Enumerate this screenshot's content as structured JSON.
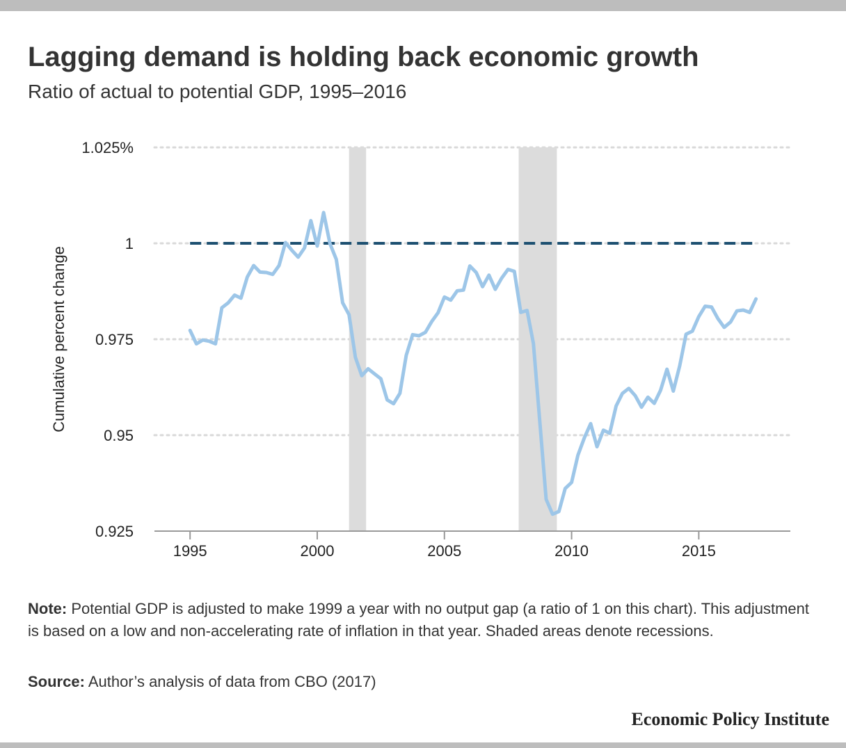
{
  "title": "Lagging demand is holding back economic growth",
  "subtitle": "Ratio of actual to potential GDP, 1995–2016",
  "note": {
    "label": "Note:",
    "text": "Potential GDP is adjusted to make 1999 a year with no output gap (a ratio of 1 on this chart). This adjustment is based on a low and non-accelerating rate of inflation in that year. Shaded areas denote recessions."
  },
  "source": {
    "label": "Source:",
    "text": "Author’s analysis of data from CBO (2017)"
  },
  "brand": "Economic Policy Institute",
  "colors": {
    "series": "#9dc6e8",
    "reference": "#1d5071",
    "recession": "#dcdcdc",
    "grid": "#d9d9d9",
    "axis": "#999999"
  },
  "chart_data": {
    "type": "line",
    "ylabel": "Cumulative percent change",
    "xlim": [
      1993.6,
      2018.6
    ],
    "ylim": [
      0.925,
      1.025
    ],
    "yticks": [
      {
        "value": 1.025,
        "label": "1.025%"
      },
      {
        "value": 1,
        "label": "1"
      },
      {
        "value": 0.975,
        "label": "0.975"
      },
      {
        "value": 0.95,
        "label": "0.95"
      },
      {
        "value": 0.925,
        "label": "0.925"
      }
    ],
    "xticks": [
      {
        "value": 1995,
        "label": "1995"
      },
      {
        "value": 2000,
        "label": "2000"
      },
      {
        "value": 2005,
        "label": "2005"
      },
      {
        "value": 2010,
        "label": "2010"
      },
      {
        "value": 2015,
        "label": "2015"
      }
    ],
    "recessions": [
      {
        "start": 2001.25,
        "end": 2001.92
      },
      {
        "start": 2007.92,
        "end": 2009.42
      }
    ],
    "reference_line": {
      "value": 1,
      "x_start": 1995,
      "x_end": 2017.25
    },
    "series": [
      {
        "x": [
          1995.0,
          1995.25,
          1995.5,
          1995.75,
          1996.0,
          1996.25,
          1996.5,
          1996.75,
          1997.0,
          1997.25,
          1997.5,
          1997.75,
          1998.0,
          1998.25,
          1998.5,
          1998.75,
          1999.0,
          1999.25,
          1999.5,
          1999.75,
          2000.0,
          2000.25,
          2000.5,
          2000.75,
          2001.0,
          2001.25,
          2001.5,
          2001.75,
          2002.0,
          2002.25,
          2002.5,
          2002.75,
          2003.0,
          2003.25,
          2003.5,
          2003.75,
          2004.0,
          2004.25,
          2004.5,
          2004.75,
          2005.0,
          2005.25,
          2005.5,
          2005.75,
          2006.0,
          2006.25,
          2006.5,
          2006.75,
          2007.0,
          2007.25,
          2007.5,
          2007.75,
          2008.0,
          2008.25,
          2008.5,
          2008.75,
          2009.0,
          2009.25,
          2009.5,
          2009.75,
          2010.0,
          2010.25,
          2010.5,
          2010.75,
          2011.0,
          2011.25,
          2011.5,
          2011.75,
          2012.0,
          2012.25,
          2012.5,
          2012.75,
          2013.0,
          2013.25,
          2013.5,
          2013.75,
          2014.0,
          2014.25,
          2014.5,
          2014.75,
          2015.0,
          2015.25,
          2015.5,
          2015.75,
          2016.0,
          2016.25,
          2016.5,
          2016.75,
          2017.0,
          2017.25
        ],
        "values": [
          0.9773,
          0.9738,
          0.9748,
          0.9745,
          0.9738,
          0.9832,
          0.9845,
          0.9865,
          0.9857,
          0.9912,
          0.9942,
          0.9925,
          0.9924,
          0.9919,
          0.9942,
          1.0002,
          0.9982,
          0.9964,
          0.9988,
          1.0059,
          0.9993,
          1.008,
          0.9999,
          0.9958,
          0.9845,
          0.9814,
          0.9703,
          0.9655,
          0.9673,
          0.966,
          0.9647,
          0.9592,
          0.9582,
          0.9609,
          0.9708,
          0.9762,
          0.9759,
          0.9768,
          0.9796,
          0.9819,
          0.986,
          0.9852,
          0.9876,
          0.9878,
          0.9941,
          0.9924,
          0.9887,
          0.9917,
          0.988,
          0.9909,
          0.9932,
          0.9927,
          0.982,
          0.9825,
          0.9739,
          0.9535,
          0.9333,
          0.9294,
          0.9301,
          0.9361,
          0.9377,
          0.9448,
          0.9493,
          0.953,
          0.947,
          0.9513,
          0.9505,
          0.9576,
          0.9609,
          0.9622,
          0.9603,
          0.9573,
          0.9599,
          0.9583,
          0.9617,
          0.9672,
          0.9615,
          0.9681,
          0.9763,
          0.9771,
          0.9809,
          0.9836,
          0.9834,
          0.9804,
          0.9781,
          0.9795,
          0.9824,
          0.9826,
          0.982,
          0.9855
        ]
      }
    ]
  }
}
